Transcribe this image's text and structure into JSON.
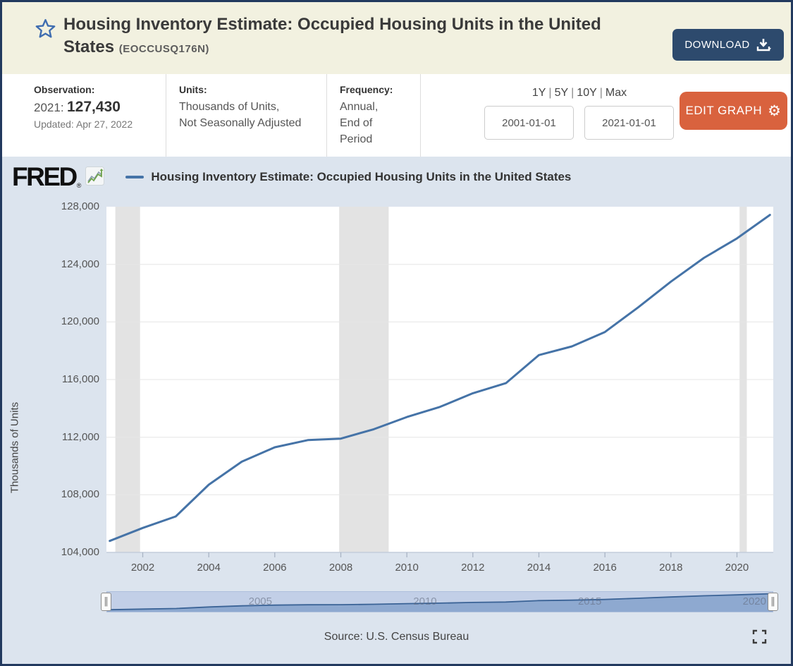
{
  "header": {
    "title": "Housing Inventory Estimate: Occupied Housing Units in the United States",
    "series_id": "(EOCCUSQ176N)",
    "download_label": "DOWNLOAD"
  },
  "meta": {
    "observation_label": "Observation:",
    "observation_date": "2021:",
    "observation_value": "127,430",
    "updated": "Updated: Apr 27, 2022",
    "units_label": "Units:",
    "units_line1": "Thousands of Units,",
    "units_line2": "Not Seasonally Adjusted",
    "frequency_label": "Frequency:",
    "frequency_line1": "Annual,",
    "frequency_line2": "End of Period"
  },
  "controls": {
    "ranges": [
      "1Y",
      "5Y",
      "10Y",
      "Max"
    ],
    "separator": "|",
    "date_start": "2001-01-01",
    "date_end": "2021-01-01",
    "edit_graph_label": "EDIT GRAPH"
  },
  "chart": {
    "brand": "FRED",
    "legend": "Housing Inventory Estimate: Occupied Housing Units in the United States",
    "ylabel": "Thousands of Units",
    "source": "Source: U.S. Census Bureau"
  },
  "chart_data": {
    "type": "line",
    "title": "Housing Inventory Estimate: Occupied Housing Units in the United States",
    "xlabel": "",
    "ylabel": "Thousands of Units",
    "x": [
      2001,
      2002,
      2003,
      2004,
      2005,
      2006,
      2007,
      2008,
      2009,
      2010,
      2011,
      2012,
      2013,
      2014,
      2015,
      2016,
      2017,
      2018,
      2019,
      2020,
      2021
    ],
    "values": [
      104800,
      105700,
      106500,
      108700,
      110300,
      111300,
      111800,
      111900,
      112550,
      113400,
      114100,
      115050,
      115750,
      117700,
      118300,
      119300,
      121000,
      122800,
      124450,
      125800,
      127430
    ],
    "x_ticks": [
      "2002",
      "2004",
      "2006",
      "2008",
      "2010",
      "2012",
      "2014",
      "2016",
      "2018",
      "2020"
    ],
    "y_ticks": [
      "128,000",
      "124,000",
      "120,000",
      "116,000",
      "112,000",
      "108,000",
      "104,000"
    ],
    "ylim": [
      104000,
      128000
    ],
    "xlim": [
      2000.9,
      2021.1
    ],
    "grid": "horizontal",
    "legend_position": "top-left",
    "line_color": "#4573a7",
    "recession_band_color": "#e3e3e3",
    "recession_bands": [
      [
        2001.17,
        2001.92
      ],
      [
        2007.95,
        2009.45
      ],
      [
        2020.08,
        2020.3
      ]
    ],
    "slider_labels": [
      "2005",
      "2010",
      "2015",
      "2020"
    ]
  }
}
